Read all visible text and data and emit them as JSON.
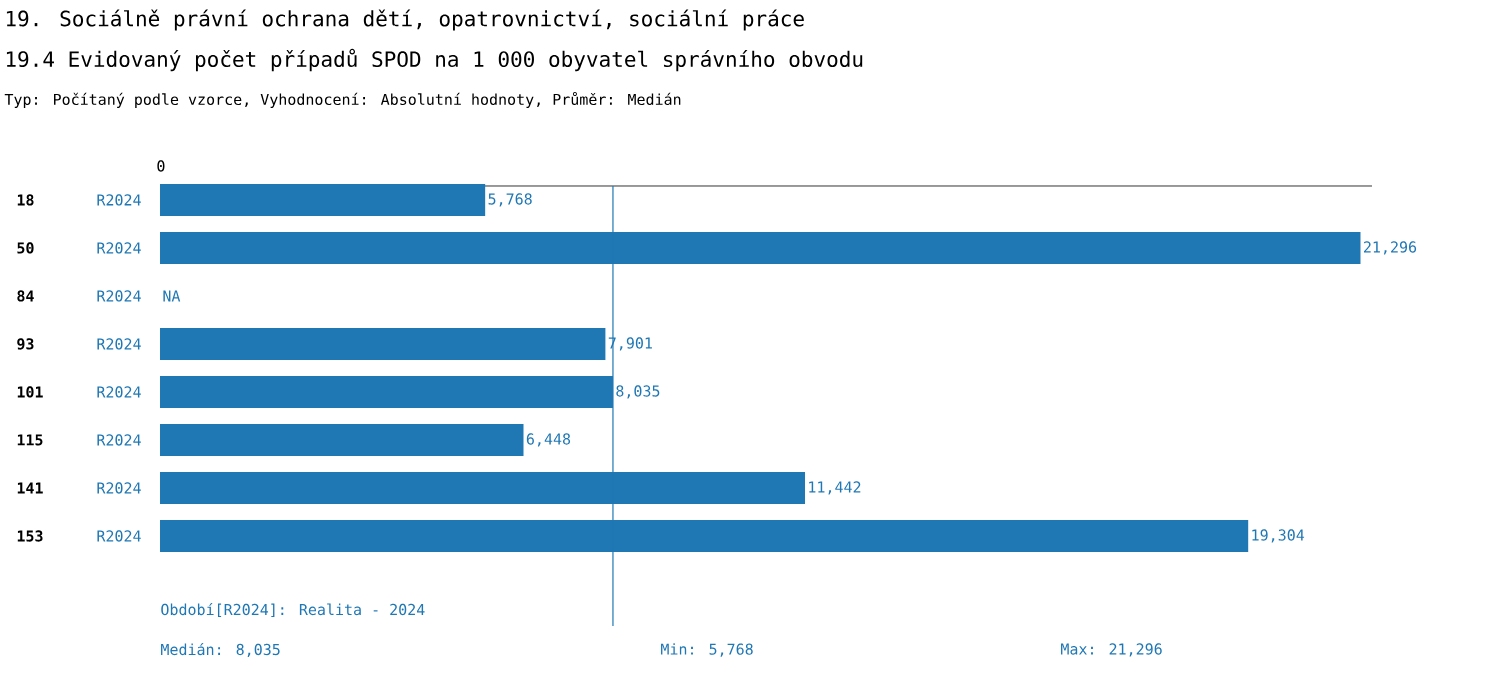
{
  "chart_data": {
    "type": "bar",
    "orientation": "horizontal",
    "title": "19. Sociálně právní ochrana dětí, opatrovnictví, sociální práce",
    "subtitle": "19.4 Evidovaný počet případů SPOD na 1 000 obyvatel správního obvodu",
    "annotations": [
      "Typ: Počítaný podle vzorce, Vyhodnocení: Absolutní hodnoty, Průměr: Medián",
      "Období[R2024]: Realita - 2024",
      "Medián: 8,035",
      "Min: 5,768",
      "Max: 21,296",
      "0"
    ],
    "categories": [
      "18",
      "50",
      "84",
      "93",
      "101",
      "115",
      "141",
      "153"
    ],
    "series": [
      {
        "name": "R2024",
        "color": "#1f77b4",
        "values": [
          5768,
          21296,
          null,
          7901,
          8035,
          6448,
          11442,
          19304
        ],
        "value_labels": [
          "5,768",
          "21,296",
          "NA",
          "7,901",
          "8,035",
          "6,448",
          "11,442",
          "19,304"
        ]
      }
    ],
    "xlim": [
      0,
      21500
    ],
    "ref_lines": [
      {
        "axis": "x",
        "value": 8035,
        "color": "#1f77b4"
      }
    ]
  }
}
